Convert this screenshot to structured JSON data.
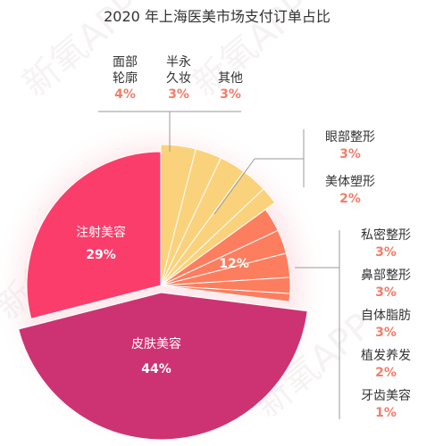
{
  "chart_data": {
    "type": "pie",
    "title": "2020 年上海医美市场支付订单占比",
    "slices": [
      {
        "label": "皮肤美容",
        "value": 44,
        "pct": "44%",
        "color": "#cd3372"
      },
      {
        "label": "注射美容",
        "value": 29,
        "pct": "29%",
        "color": "#fb3d6b"
      },
      {
        "label": "面部轮廓",
        "value": 4,
        "pct": "4%",
        "color": "#fbd27c"
      },
      {
        "label": "半永久妆",
        "value": 3,
        "pct": "3%",
        "color": "#fbd27c"
      },
      {
        "label": "其他",
        "value": 3,
        "pct": "3%",
        "color": "#fbd27c"
      },
      {
        "label": "眼部整形",
        "value": 3,
        "pct": "3%",
        "color": "#fbd27c"
      },
      {
        "label": "美体塑形",
        "value": 2,
        "pct": "2%",
        "color": "#fbd27c"
      },
      {
        "label": "私密整形",
        "value": 3,
        "pct": "3%",
        "color": "#fc7e5f"
      },
      {
        "label": "鼻部整形",
        "value": 3,
        "pct": "3%",
        "color": "#fc7e5f"
      },
      {
        "label": "自体脂肪",
        "value": 3,
        "pct": "3%",
        "color": "#fc7e5f"
      },
      {
        "label": "植发养发",
        "value": 2,
        "pct": "2%",
        "color": "#fc7e5f"
      },
      {
        "label": "牙齿美容",
        "value": 1,
        "pct": "1%",
        "color": "#fc7e5f"
      }
    ],
    "groups": [
      {
        "name": "yellow-group",
        "pct": "",
        "color": "#fbd27c"
      },
      {
        "name": "orange-group",
        "pct": "12%",
        "color": "#fc7e5f"
      }
    ],
    "callout_top": [
      {
        "line1": "面部",
        "line2": "轮廓",
        "pct": "4%"
      },
      {
        "line1": "半永",
        "line2": "久妆",
        "pct": "3%"
      },
      {
        "line1": "其他",
        "line2": "",
        "pct": "3%"
      }
    ],
    "callout_right_upper": [
      {
        "name": "眼部整形",
        "pct": "3%"
      },
      {
        "name": "美体塑形",
        "pct": "2%"
      }
    ],
    "callout_right_lower": [
      {
        "name": "私密整形",
        "pct": "3%"
      },
      {
        "name": "鼻部整形",
        "pct": "3%"
      },
      {
        "name": "自体脂肪",
        "pct": "3%"
      },
      {
        "name": "植发养发",
        "pct": "2%"
      },
      {
        "name": "牙齿美容",
        "pct": "1%"
      }
    ],
    "inner_labels": [
      {
        "name": "注射美容",
        "pct": "29%"
      },
      {
        "name": "皮肤美容",
        "pct": "44%"
      }
    ],
    "watermark": "新氧APP",
    "colors": {
      "pct_text": "#f17e6a",
      "leader": "#999999"
    }
  }
}
